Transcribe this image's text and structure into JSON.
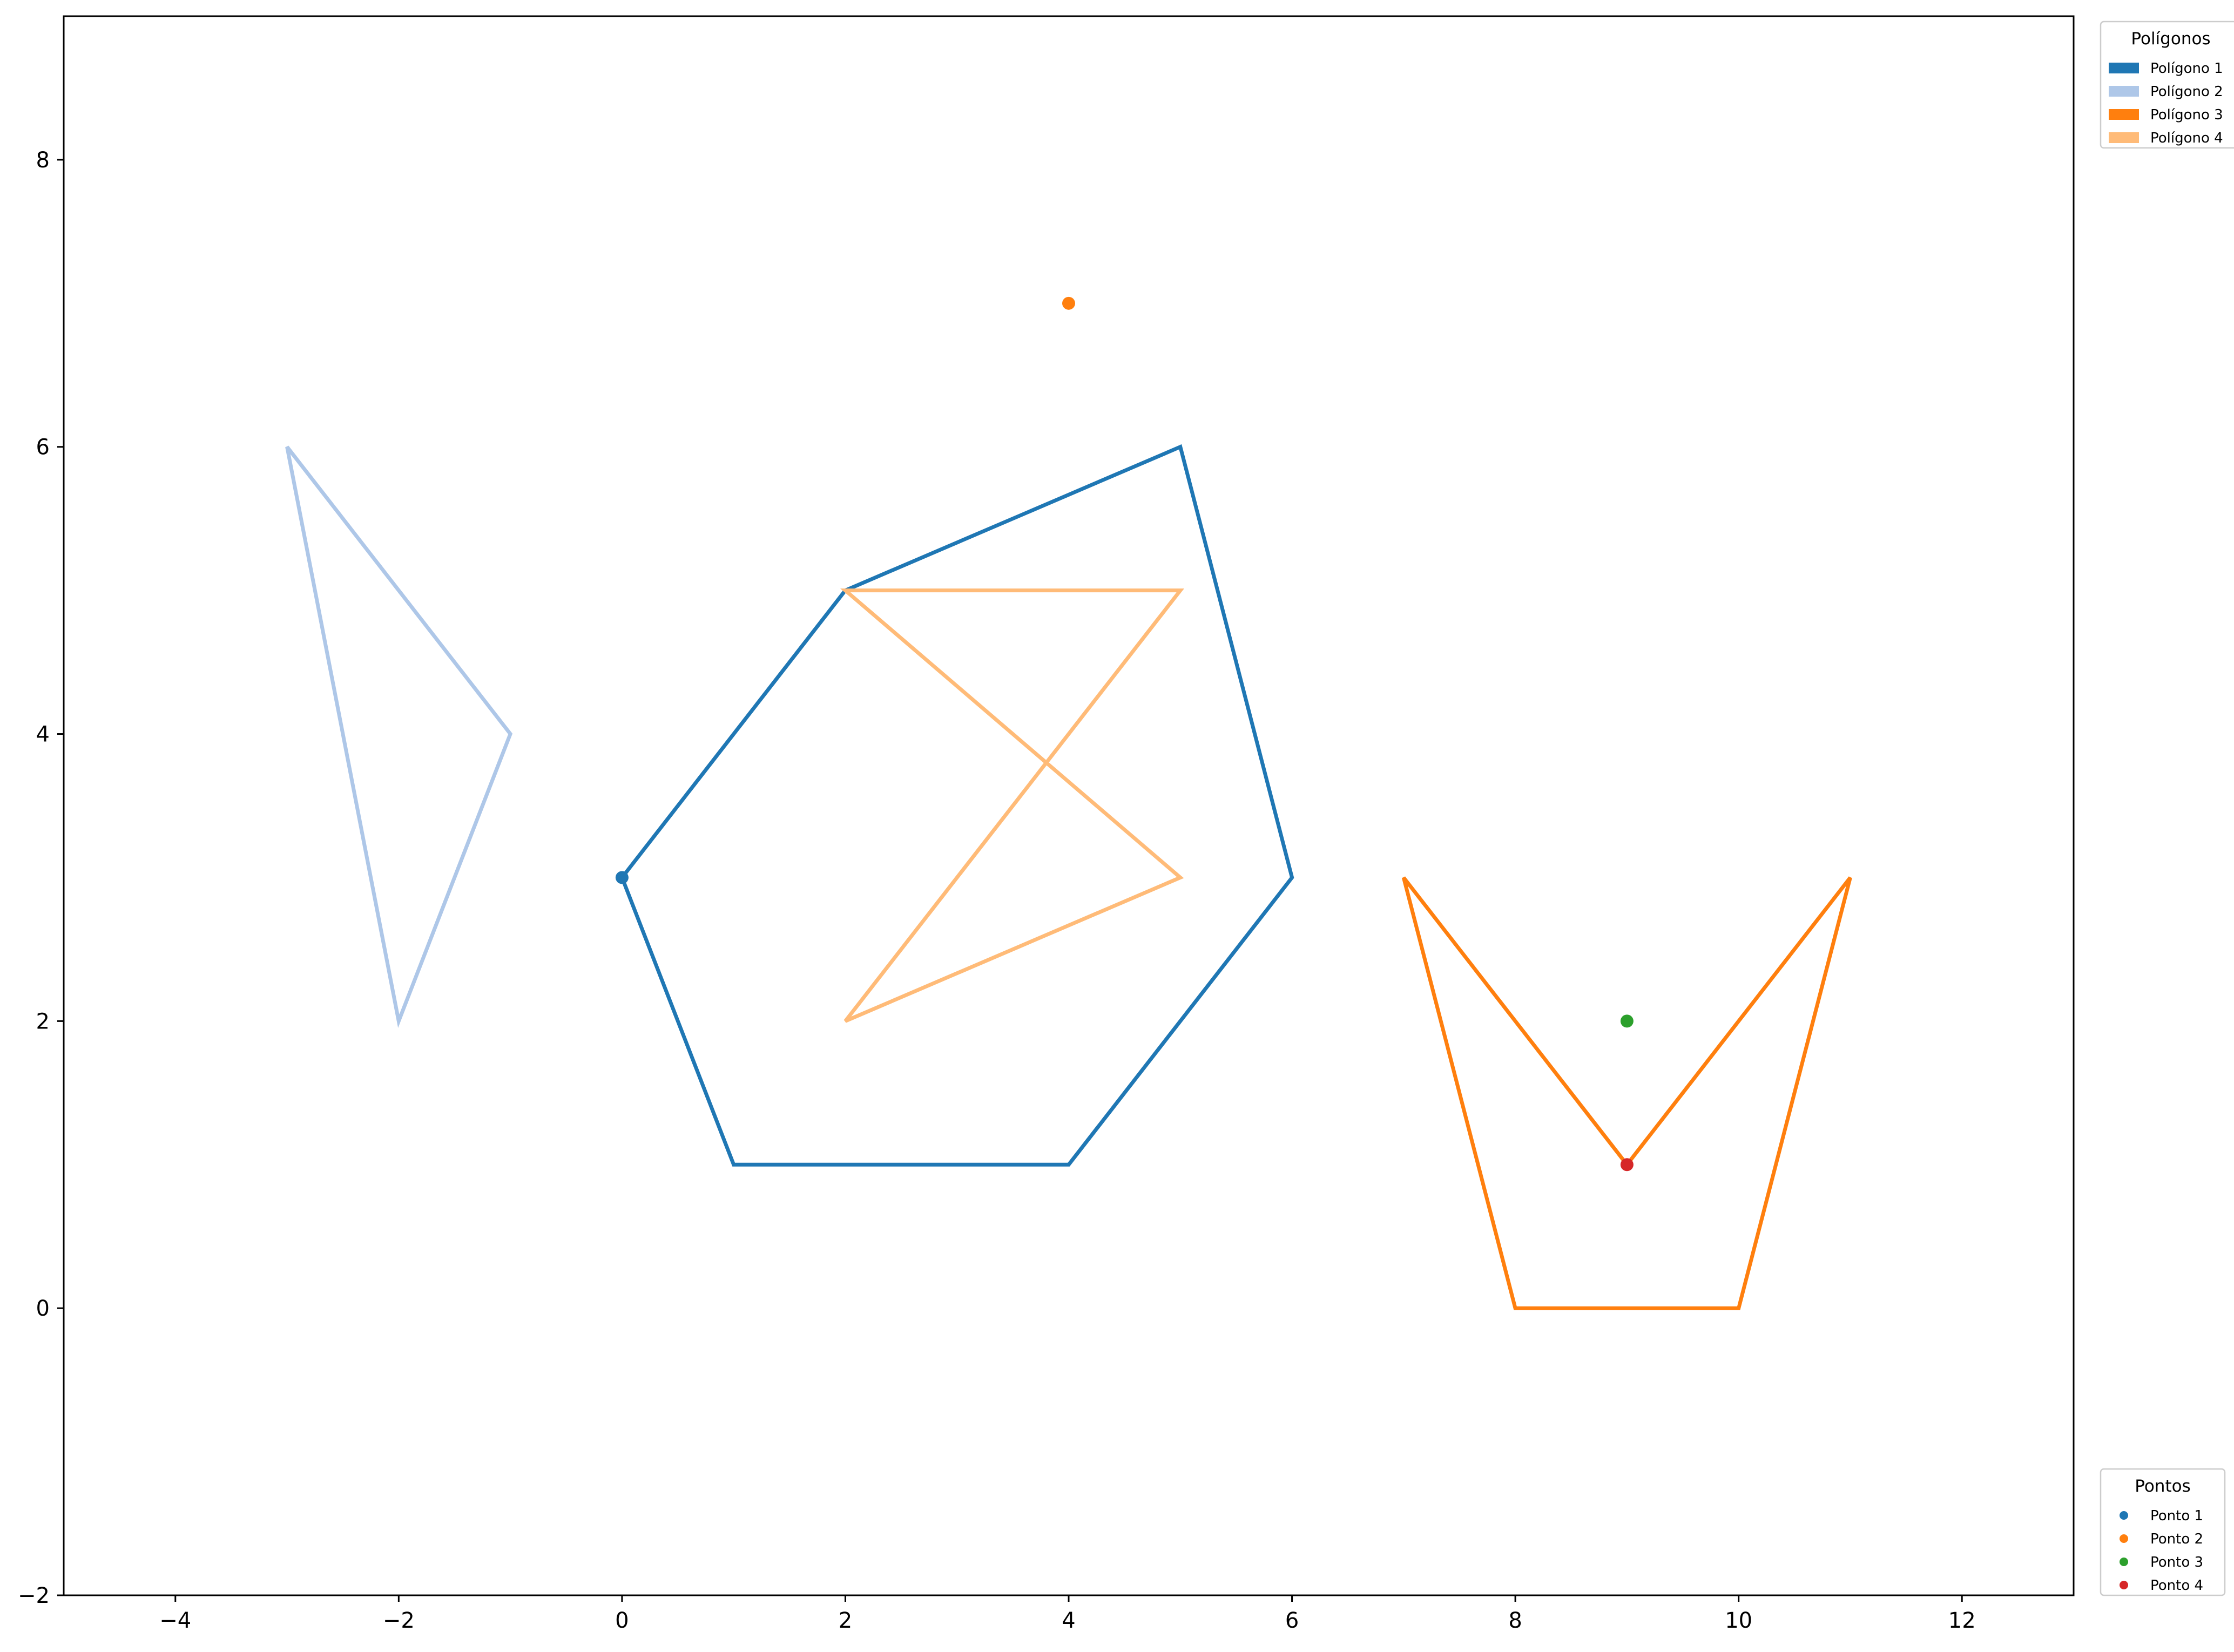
{
  "chart_data": {
    "type": "line",
    "xlim": [
      -5,
      13
    ],
    "ylim": [
      -2,
      9
    ],
    "grid": false,
    "x_ticks": [
      -4,
      -2,
      0,
      2,
      4,
      6,
      8,
      10,
      12
    ],
    "y_ticks": [
      -2,
      0,
      2,
      4,
      6,
      8
    ],
    "polygons": [
      {
        "name": "Polígono 1",
        "color": "#1f77b4",
        "vertices": [
          [
            0,
            3
          ],
          [
            2,
            5
          ],
          [
            5,
            6
          ],
          [
            6,
            3
          ],
          [
            4,
            1
          ],
          [
            1,
            1
          ]
        ]
      },
      {
        "name": "Polígono 2",
        "color": "#aec7e8",
        "vertices": [
          [
            -3,
            6
          ],
          [
            -1,
            4
          ],
          [
            -2,
            2
          ]
        ]
      },
      {
        "name": "Polígono 3",
        "color": "#ff7f0e",
        "vertices": [
          [
            7,
            3
          ],
          [
            9,
            1
          ],
          [
            11,
            3
          ],
          [
            10,
            0
          ],
          [
            8,
            0
          ]
        ]
      },
      {
        "name": "Polígono 4",
        "color": "#ffbb78",
        "vertices": [
          [
            2,
            5
          ],
          [
            5,
            5
          ],
          [
            2,
            2
          ],
          [
            5,
            3
          ]
        ]
      }
    ],
    "points": [
      {
        "name": "Ponto 1",
        "color": "#1f77b4",
        "x": 0,
        "y": 3
      },
      {
        "name": "Ponto 2",
        "color": "#ff7f0e",
        "x": 4,
        "y": 7
      },
      {
        "name": "Ponto 3",
        "color": "#2ca02c",
        "x": 9,
        "y": 2
      },
      {
        "name": "Ponto 4",
        "color": "#d62728",
        "x": 9,
        "y": 1
      }
    ],
    "legends": [
      {
        "title": "Polígonos",
        "placement": "upper-right-outside",
        "kind": "polygons"
      },
      {
        "title": "Pontos",
        "placement": "lower-right-outside",
        "kind": "points"
      }
    ]
  }
}
